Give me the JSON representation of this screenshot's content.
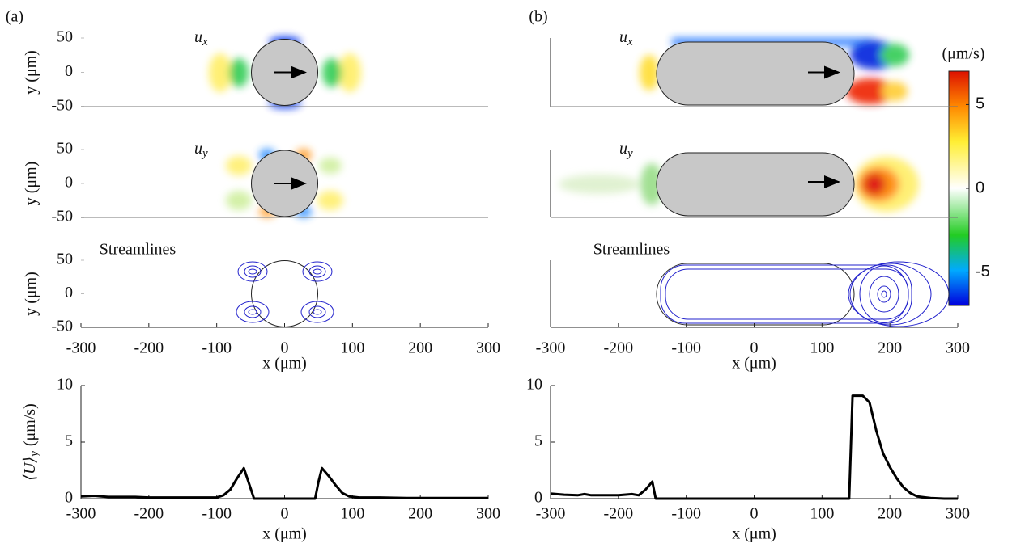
{
  "chart_data": [
    {
      "type": "field",
      "label": "(a)",
      "rows": [
        {
          "symbol": "u",
          "sub": "x"
        },
        {
          "symbol": "u",
          "sub": "y"
        },
        {
          "text": "Streamlines"
        }
      ],
      "xlim": [
        -300,
        300
      ],
      "ylim": [
        -50,
        50
      ],
      "xticks": [
        -300,
        -200,
        -100,
        0,
        100,
        200,
        300
      ],
      "yticks": [
        50,
        0,
        -50
      ],
      "xlabel": "x (μm)",
      "ylabel": "y (μm)"
    },
    {
      "type": "field",
      "label": "(b)",
      "rows": [
        {
          "symbol": "u",
          "sub": "x"
        },
        {
          "symbol": "u",
          "sub": "y"
        },
        {
          "text": "Streamlines"
        }
      ],
      "xlim": [
        -300,
        300
      ],
      "ylim": [
        -50,
        50
      ],
      "xticks": [
        -300,
        -200,
        -100,
        0,
        100,
        200,
        300
      ],
      "xlabel": "x (μm)"
    },
    {
      "type": "line",
      "color": "#000000",
      "x": [
        -300,
        -280,
        -260,
        -240,
        -220,
        -200,
        -180,
        -160,
        -140,
        -120,
        -100,
        -90,
        -80,
        -70,
        -60,
        -55,
        -50,
        -45,
        0,
        45,
        50,
        55,
        65,
        75,
        85,
        95,
        110,
        140,
        180,
        220,
        260,
        300
      ],
      "values": [
        0.2,
        0.25,
        0.15,
        0.15,
        0.15,
        0.1,
        0.1,
        0.1,
        0.1,
        0.1,
        0.1,
        0.3,
        0.8,
        1.8,
        2.7,
        1.8,
        0.9,
        0,
        0,
        0,
        1.5,
        2.7,
        2.0,
        1.2,
        0.5,
        0.2,
        0.1,
        0.1,
        0.05,
        0.05,
        0.05,
        0.05
      ],
      "xlim": [
        -300,
        300
      ],
      "ylim": [
        0,
        10
      ],
      "xticks": [
        -300,
        -200,
        -100,
        0,
        100,
        200,
        300
      ],
      "yticks": [
        0,
        5,
        10
      ],
      "xlabel": "x (μm)",
      "ylabel": {
        "symbol": "⟨U⟩",
        "sub": "y",
        "unit": "(μm/s)"
      }
    },
    {
      "type": "line",
      "color": "#000000",
      "x": [
        -300,
        -280,
        -260,
        -250,
        -240,
        -220,
        -200,
        -180,
        -170,
        -160,
        -150,
        -145,
        0,
        140,
        145,
        160,
        170,
        180,
        190,
        200,
        210,
        220,
        230,
        240,
        260,
        280,
        300
      ],
      "values": [
        0.45,
        0.35,
        0.3,
        0.4,
        0.3,
        0.3,
        0.3,
        0.4,
        0.3,
        0.8,
        1.5,
        0,
        0,
        0,
        9.1,
        9.1,
        8.5,
        6.0,
        4.0,
        2.8,
        1.8,
        1.0,
        0.5,
        0.2,
        0.05,
        0,
        0
      ],
      "xlim": [
        -300,
        300
      ],
      "ylim": [
        0,
        10
      ],
      "xticks": [
        -300,
        -200,
        -100,
        0,
        100,
        200,
        300
      ],
      "yticks": [
        0,
        5,
        10
      ],
      "xlabel": "x (μm)"
    },
    {
      "type": "colorbar",
      "label": "(μm/s)",
      "lim": [
        -7,
        7
      ],
      "ticks": [
        5,
        0,
        -5
      ]
    }
  ]
}
